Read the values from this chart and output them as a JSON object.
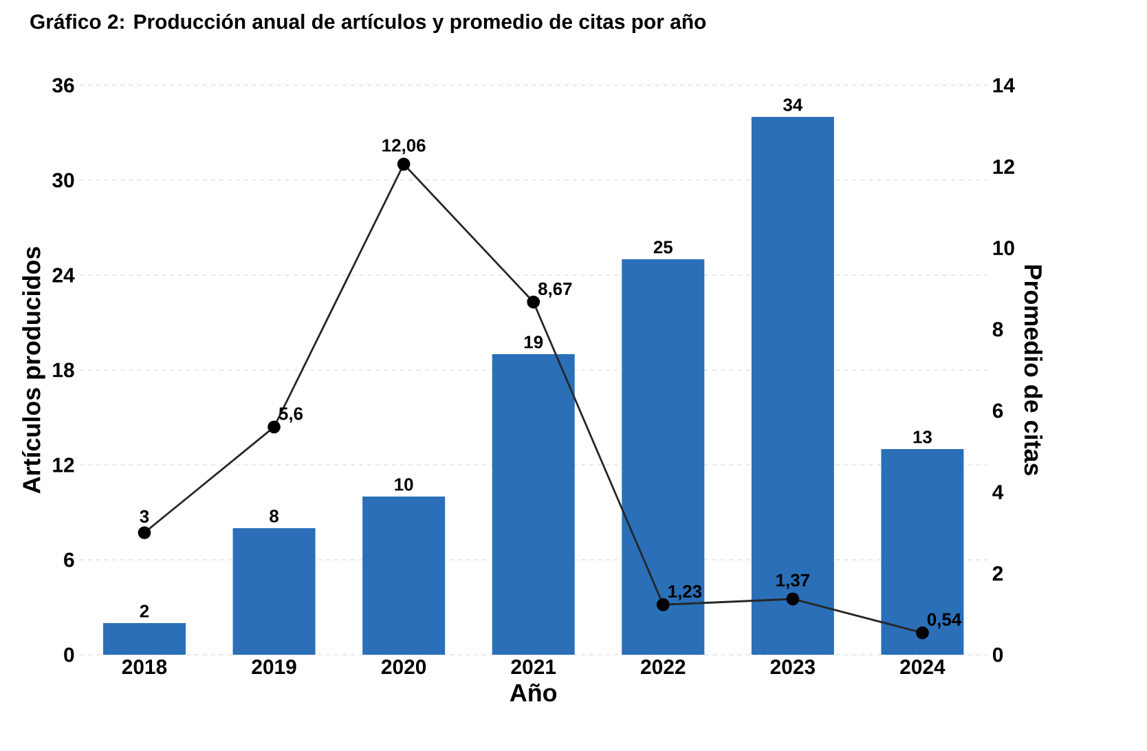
{
  "chart_data": {
    "type": "bar",
    "title": "Gráfico 2: Producción anual de artículos y promedio de citas por año",
    "xlabel": "Año",
    "ylabel": "Artículos producidos",
    "y2label": "Promedio de citas",
    "categories": [
      "2018",
      "2019",
      "2020",
      "2021",
      "2022",
      "2023",
      "2024"
    ],
    "series": [
      {
        "type": "bar",
        "color": "#2a6fb8",
        "values": [
          2,
          8,
          10,
          19,
          25,
          34,
          13
        ],
        "value_labels": [
          "2",
          "8",
          "10",
          "19",
          "25",
          "34",
          "13"
        ]
      },
      {
        "type": "line",
        "axis": "y2",
        "color": "#262626",
        "marker": "circle",
        "values": [
          3,
          5.6,
          12.06,
          8.67,
          1.23,
          1.37,
          0.54
        ],
        "value_labels": [
          "3",
          "5,6",
          "12,06",
          "8,67",
          "1,23",
          "1,37",
          "0,54"
        ]
      }
    ],
    "ylim": [
      0,
      36
    ],
    "yticks": [
      0,
      6,
      12,
      18,
      24,
      30,
      36
    ],
    "y2lim": [
      0,
      14
    ],
    "y2ticks": [
      0,
      2,
      4,
      6,
      8,
      10,
      12,
      14
    ],
    "grid": "y"
  }
}
